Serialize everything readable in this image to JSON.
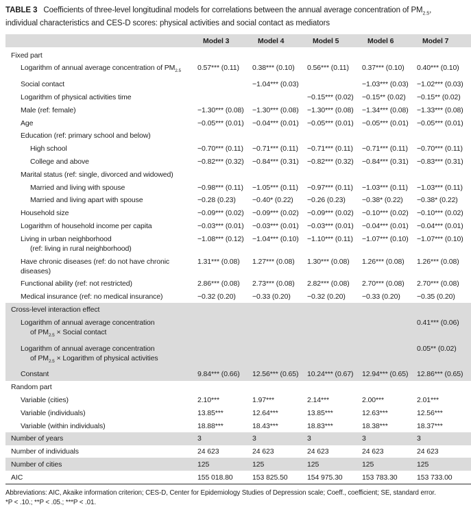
{
  "title": {
    "label": "TABLE 3",
    "before_sub": "Coefficients of three-level longitudinal models for correlations between the annual average concentration of PM",
    "sub": "2.5",
    "after_sub": ", individual characteristics and CES-D scores: physical activities and social contact as mediators"
  },
  "table": {
    "columns": [
      "Model 3",
      "Model 4",
      "Model 5",
      "Model 6",
      "Model 7"
    ],
    "rows": [
      {
        "label": "Fixed part",
        "indent": 0,
        "section": true,
        "shaded": false,
        "values": [
          "",
          "",
          "",
          "",
          ""
        ]
      },
      {
        "label": {
          "pre": "Logarithm of annual average concentration of PM",
          "sub": "2.5",
          "post": ""
        },
        "indent": 1,
        "shaded": false,
        "values": [
          "0.57*** (0.11)",
          "0.38*** (0.10)",
          "0.56*** (0.11)",
          "0.37*** (0.10)",
          "0.40*** (0.10)"
        ]
      },
      {
        "label": "Social contact",
        "indent": 1,
        "shaded": false,
        "values": [
          "",
          "−1.04*** (0.03)",
          "",
          "−1.03*** (0.03)",
          "−1.02*** (0.03)"
        ]
      },
      {
        "label": "Logarithm of physical activities time",
        "indent": 1,
        "shaded": false,
        "values": [
          "",
          "",
          "−0.15*** (0.02)",
          "−0.15** (0.02)",
          "−0.15** (0.02)"
        ]
      },
      {
        "label": "Male (ref: female)",
        "indent": 1,
        "shaded": false,
        "values": [
          "−1.30*** (0.08)",
          "−1.30*** (0.08)",
          "−1.30*** (0.08)",
          "−1.34*** (0.08)",
          "−1.33*** (0.08)"
        ]
      },
      {
        "label": "Age",
        "indent": 1,
        "shaded": false,
        "values": [
          "−0.05*** (0.01)",
          "−0.04*** (0.01)",
          "−0.05*** (0.01)",
          "−0.05*** (0.01)",
          "−0.05*** (0.01)"
        ]
      },
      {
        "label": "Education (ref: primary school and below)",
        "indent": 1,
        "shaded": false,
        "values": [
          "",
          "",
          "",
          "",
          ""
        ]
      },
      {
        "label": "High school",
        "indent": 2,
        "shaded": false,
        "values": [
          "−0.70*** (0.11)",
          "−0.71*** (0.11)",
          "−0.71*** (0.11)",
          "−0.71*** (0.11)",
          "−0.70*** (0.11)"
        ]
      },
      {
        "label": "College and above",
        "indent": 2,
        "shaded": false,
        "values": [
          "−0.82*** (0.32)",
          "−0.84*** (0.31)",
          "−0.82*** (0.32)",
          "−0.84*** (0.31)",
          "−0.83*** (0.31)"
        ]
      },
      {
        "label": "Marital status (ref: single, divorced and widowed)",
        "indent": 1,
        "shaded": false,
        "values": [
          "",
          "",
          "",
          "",
          ""
        ]
      },
      {
        "label": "Married and living with spouse",
        "indent": 2,
        "shaded": false,
        "values": [
          "−0.98*** (0.11)",
          "−1.05*** (0.11)",
          "−0.97*** (0.11)",
          "−1.03*** (0.11)",
          "−1.03*** (0.11)"
        ]
      },
      {
        "label": "Married and living apart with spouse",
        "indent": 2,
        "shaded": false,
        "values": [
          "−0.28 (0.23)",
          "−0.40* (0.22)",
          "−0.26 (0.23)",
          "−0.38* (0.22)",
          "−0.38* (0.22)"
        ]
      },
      {
        "label": "Household size",
        "indent": 1,
        "shaded": false,
        "values": [
          "−0.09*** (0.02)",
          "−0.09*** (0.02)",
          "−0.09*** (0.02)",
          "−0.10*** (0.02)",
          "−0.10*** (0.02)"
        ]
      },
      {
        "label": "Logarithm of household income per capita",
        "indent": 1,
        "shaded": false,
        "values": [
          "−0.03*** (0.01)",
          "−0.03*** (0.01)",
          "−0.03*** (0.01)",
          "−0.04*** (0.01)",
          "−0.04*** (0.01)"
        ]
      },
      {
        "label": "Living in urban neighborhood",
        "label2": "(ref: living in rural neighborhood)",
        "indent": 1,
        "shaded": false,
        "values": [
          "−1.08*** (0.12)",
          "−1.04*** (0.10)",
          "−1.10*** (0.11)",
          "−1.07*** (0.10)",
          "−1.07*** (0.10)"
        ]
      },
      {
        "label": "Have chronic diseases (ref: do not have chronic diseases)",
        "indent": 1,
        "shaded": false,
        "values": [
          "1.31*** (0.08)",
          "1.27*** (0.08)",
          "1.30*** (0.08)",
          "1.26*** (0.08)",
          "1.26*** (0.08)"
        ]
      },
      {
        "label": "Functional ability (ref: not restricted)",
        "indent": 1,
        "shaded": false,
        "values": [
          "2.86*** (0.08)",
          "2.73*** (0.08)",
          "2.82*** (0.08)",
          "2.70*** (0.08)",
          "2.70*** (0.08)"
        ]
      },
      {
        "label": "Medical insurance (ref: no medical insurance)",
        "indent": 1,
        "shaded": false,
        "values": [
          "−0.32 (0.20)",
          "−0.33 (0.20)",
          "−0.32 (0.20)",
          "−0.33 (0.20)",
          "−0.35 (0.20)"
        ]
      },
      {
        "label": "Cross-level interaction effect",
        "indent": 0,
        "section": true,
        "shaded": true,
        "values": [
          "",
          "",
          "",
          "",
          ""
        ]
      },
      {
        "label": "Logarithm of annual average concentration",
        "label2": {
          "pre": "of PM",
          "sub": "2.5",
          "post": " × Social contact"
        },
        "indent": 1,
        "shaded": true,
        "values": [
          "",
          "",
          "",
          "",
          "0.41*** (0.06)"
        ]
      },
      {
        "label": "Logarithm of annual average concentration",
        "label2": {
          "pre": "of PM",
          "sub": "2.5",
          "post": " × Logarithm of physical activities"
        },
        "indent": 1,
        "shaded": true,
        "values": [
          "",
          "",
          "",
          "",
          "0.05** (0.02)"
        ]
      },
      {
        "label": "Constant",
        "indent": 1,
        "shaded": true,
        "values": [
          "9.84*** (0.66)",
          "12.56*** (0.65)",
          "10.24*** (0.67)",
          "12.94*** (0.65)",
          "12.86*** (0.65)"
        ]
      },
      {
        "label": "Random part",
        "indent": 0,
        "section": true,
        "shaded": false,
        "values": [
          "",
          "",
          "",
          "",
          ""
        ]
      },
      {
        "label": "Variable (cities)",
        "indent": 1,
        "shaded": false,
        "values": [
          "2.10***",
          "1.97***",
          "2.14***",
          "2.00***",
          "2.01***"
        ]
      },
      {
        "label": "Variable (individuals)",
        "indent": 1,
        "shaded": false,
        "values": [
          "13.85***",
          "12.64***",
          "13.85***",
          "12.63***",
          "12.56***"
        ]
      },
      {
        "label": "Variable (within individuals)",
        "indent": 1,
        "shaded": false,
        "values": [
          "18.88***",
          "18.43***",
          "18.83***",
          "18.38***",
          "18.37***"
        ]
      },
      {
        "label": "Number of years",
        "indent": 0,
        "shaded": true,
        "values": [
          "3",
          "3",
          "3",
          "3",
          "3"
        ]
      },
      {
        "label": "Number of individuals",
        "indent": 0,
        "shaded": false,
        "values": [
          "24 623",
          "24 623",
          "24 623",
          "24 623",
          "24 623"
        ]
      },
      {
        "label": "Number of cities",
        "indent": 0,
        "shaded": true,
        "values": [
          "125",
          "125",
          "125",
          "125",
          "125"
        ]
      },
      {
        "label": "AIC",
        "indent": 0,
        "shaded": false,
        "values": [
          "155 018.80",
          "153 825.50",
          "154 975.30",
          "153 783.30",
          "153 733.00"
        ]
      }
    ]
  },
  "footnotes": {
    "abbreviations": "Abbreviations: AIC, Akaike information criterion; CES-D, Center for Epidemiology Studies of Depression scale; Coeff., coefficient; SE, standard error.",
    "significance": "*P < .10.; **P < .05.; ***P < .01."
  }
}
